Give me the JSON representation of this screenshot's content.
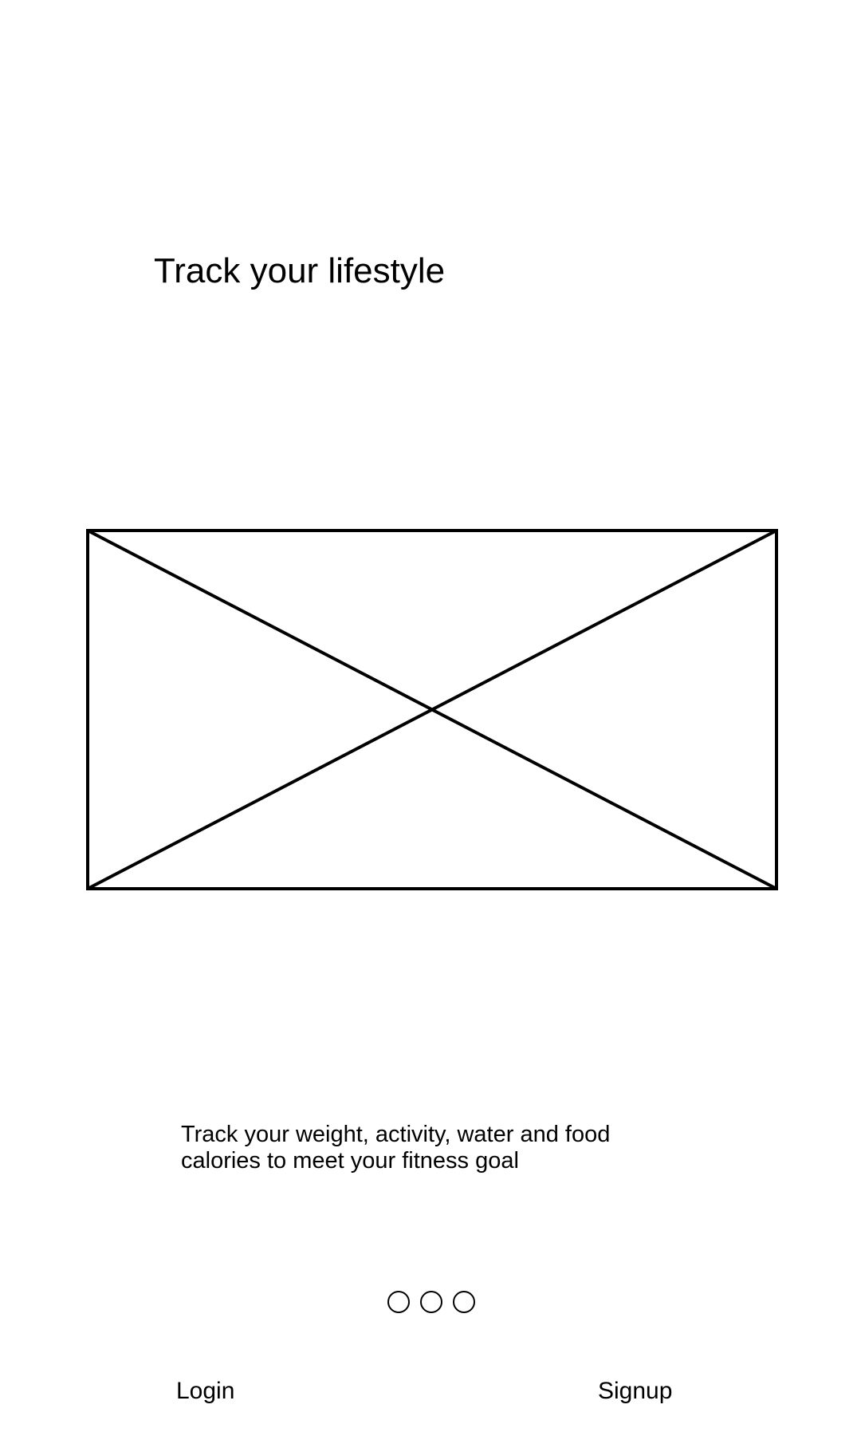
{
  "onboarding": {
    "title": "Track your lifestyle",
    "description": "Track your weight, activity, water and food calories to meet your fitness goal",
    "page_indicator": {
      "pages": 3
    }
  },
  "footer": {
    "login_label": "Login",
    "signup_label": "Signup"
  },
  "colors": {
    "background": "#ffffff",
    "foreground": "#000000"
  }
}
